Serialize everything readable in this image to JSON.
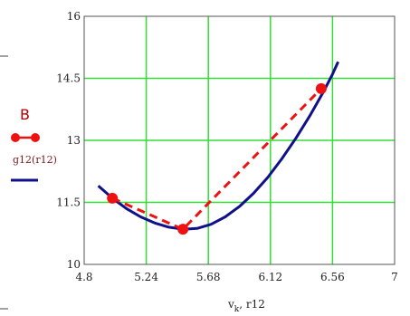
{
  "chart_data": {
    "type": "line",
    "xlim": [
      4.8,
      7.0
    ],
    "ylim": [
      10,
      16
    ],
    "x_ticks": [
      "4.8",
      "5.24",
      "5.68",
      "6.12",
      "6.56",
      "7"
    ],
    "y_ticks": [
      "10",
      "11.5",
      "13",
      "14.5",
      "16"
    ],
    "xlabel": "v",
    "xlabel_sub": "k",
    "xlabel_suffix": ", r12",
    "grid": true,
    "grid_color": "#33dd33",
    "series": [
      {
        "name": "B",
        "style": "dashed-markers",
        "color": "#ee1111",
        "x": [
          5.0,
          5.5,
          6.48
        ],
        "y": [
          11.6,
          10.85,
          14.25
        ]
      },
      {
        "name": "g12(r12)",
        "style": "solid",
        "color": "#10108a",
        "x": [
          4.9,
          5.0,
          5.1,
          5.2,
          5.3,
          5.4,
          5.5,
          5.6,
          5.7,
          5.8,
          5.9,
          6.0,
          6.1,
          6.2,
          6.3,
          6.4,
          6.5,
          6.56,
          6.6
        ],
        "y": [
          11.9,
          11.6,
          11.35,
          11.15,
          11.0,
          10.9,
          10.85,
          10.87,
          10.97,
          11.15,
          11.4,
          11.72,
          12.1,
          12.55,
          13.05,
          13.6,
          14.2,
          14.6,
          14.9
        ]
      }
    ]
  }
}
